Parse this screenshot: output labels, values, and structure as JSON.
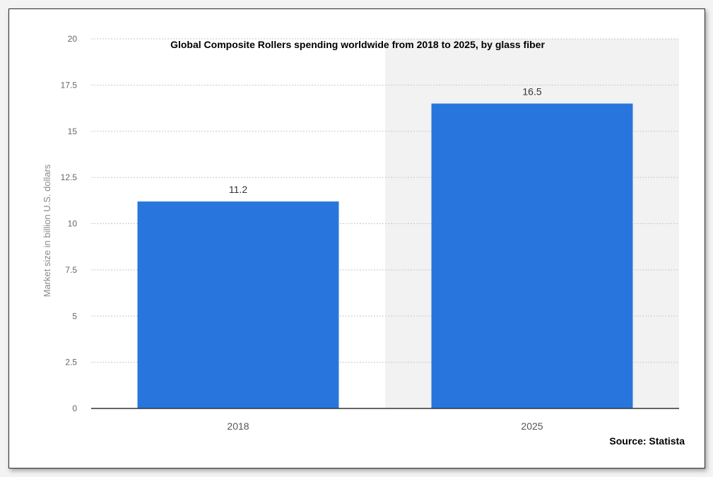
{
  "chart_data": {
    "type": "bar",
    "title": "Global Composite Rollers spending worldwide from 2018 to 2025, by glass fiber",
    "xlabel": "",
    "ylabel": "Market size in billion U.S. dollars",
    "categories": [
      "2018",
      "2025"
    ],
    "values": [
      11.2,
      16.5
    ],
    "data_labels": [
      "11.2",
      "16.5"
    ],
    "ylim": [
      0,
      20
    ],
    "yticks": [
      0,
      2.5,
      5,
      7.5,
      10,
      12.5,
      15,
      17.5,
      20
    ],
    "ytick_labels": [
      "0",
      "2.5",
      "5",
      "7.5",
      "10",
      "12.5",
      "15",
      "17.5",
      "20"
    ],
    "grid": true,
    "legend": "none",
    "colors": {
      "bar": "#2876dd",
      "grid": "#c8c8c8",
      "axis": "#333333",
      "tick_text": "#666666",
      "shaded_region": "#f2f2f2"
    }
  },
  "source": "Source: Statista"
}
